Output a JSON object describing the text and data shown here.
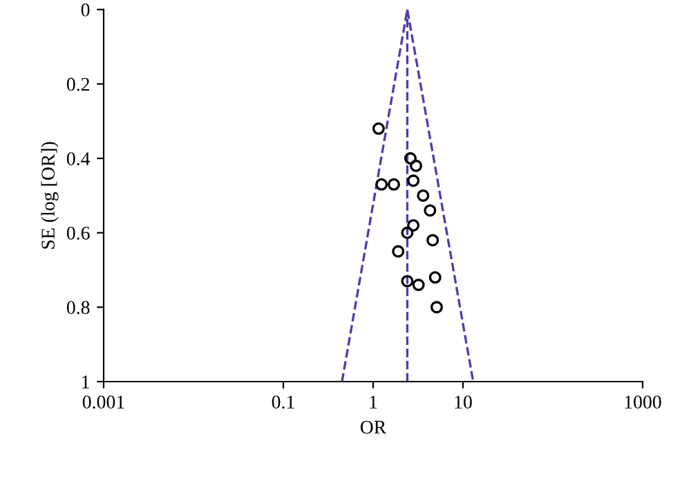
{
  "chart_data": {
    "type": "scatter",
    "xlabel": "OR",
    "ylabel": "SE (log [OR])",
    "log": "x",
    "xlim": [
      0.001,
      1000
    ],
    "xticks": [
      0.001,
      0.1,
      1,
      10,
      1000
    ],
    "ylim": [
      1,
      0
    ],
    "yticks": [
      0,
      0.2,
      0.4,
      0.6,
      0.8,
      1
    ],
    "grid": false,
    "series": [
      {
        "color": "#000000",
        "marker": "circle",
        "x": [
          1.15,
          2.6,
          3.0,
          1.24,
          1.7,
          2.8,
          3.6,
          4.3,
          2.8,
          2.4,
          4.6,
          1.9,
          2.4,
          4.9,
          3.2,
          5.1
        ],
        "values": [
          0.32,
          0.4,
          0.42,
          0.47,
          0.47,
          0.46,
          0.5,
          0.54,
          0.58,
          0.6,
          0.62,
          0.65,
          0.73,
          0.72,
          0.74,
          0.8
        ]
      },
      {
        "type": "line",
        "color": "#4b3fa8",
        "line_style": "dashed",
        "marker": "none",
        "x": [
          0.45,
          2.4,
          13
        ],
        "values": [
          1,
          0,
          1
        ]
      }
    ],
    "ref_lines": [
      {
        "axis": "x",
        "value": 2.4,
        "color": "#4b3fa8",
        "line_style": "dashed"
      }
    ]
  }
}
